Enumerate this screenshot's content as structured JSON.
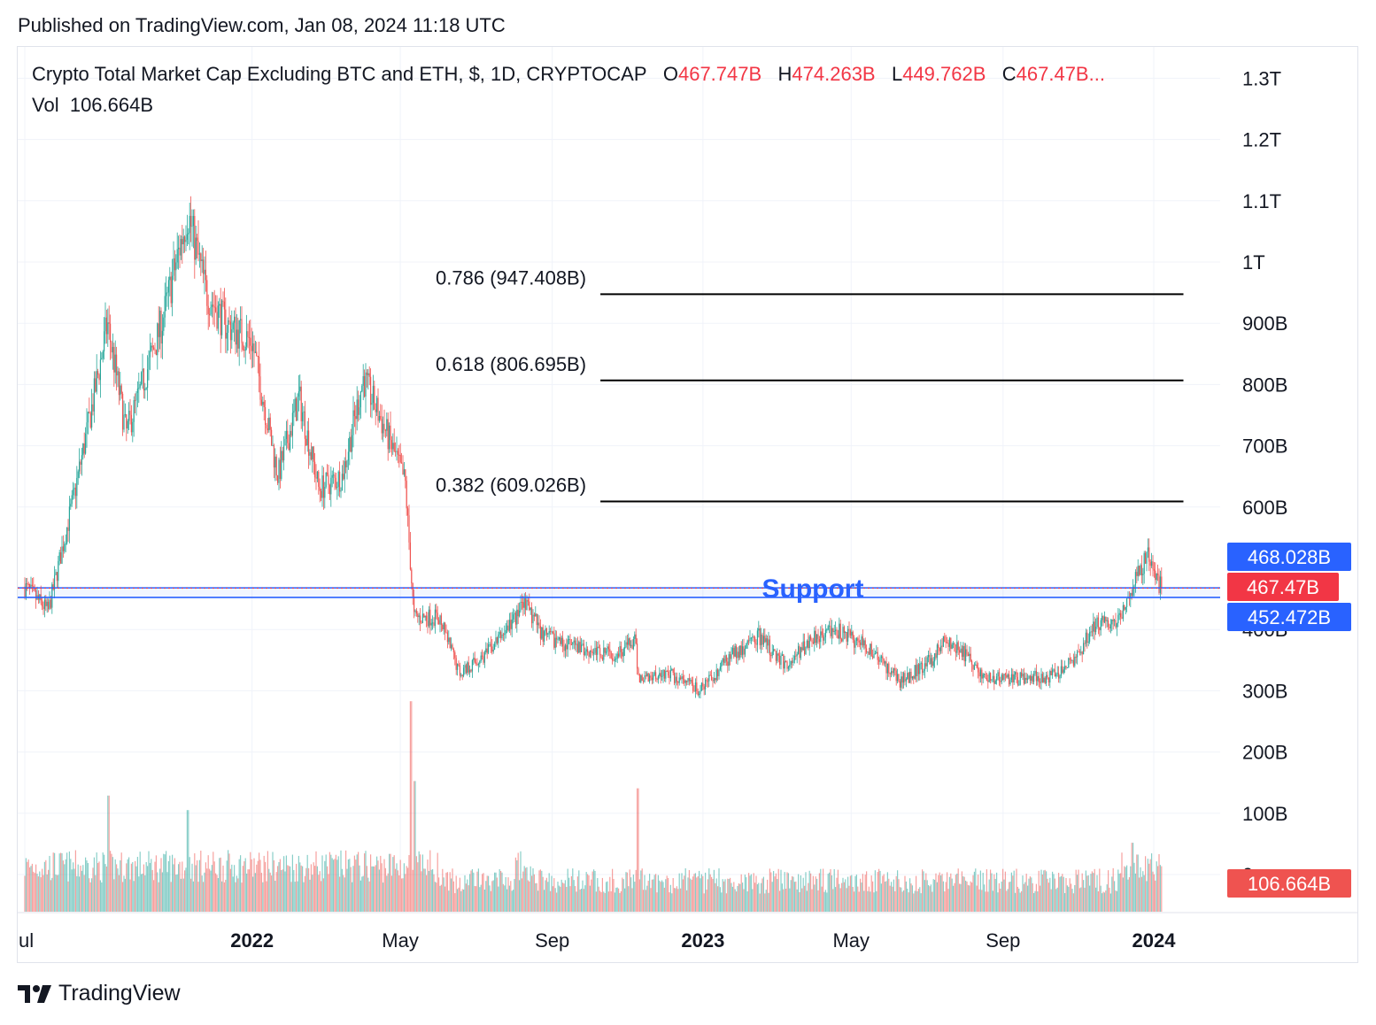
{
  "header": {
    "published": "Published on TradingView.com, Jan 08, 2024 11:18 UTC"
  },
  "legend": {
    "symbol": "Crypto Total Market Cap Excluding BTC and ETH, $, 1D, CRYPTOCAP",
    "o_label": "O",
    "o_value": "467.747B",
    "h_label": "H",
    "h_value": "474.263B",
    "l_label": "L",
    "l_value": "449.762B",
    "c_label": "C",
    "c_value": "467.47B...",
    "vol_label": "Vol",
    "vol_value": "106.664B"
  },
  "brand": {
    "name": "TradingView"
  },
  "colors": {
    "up": "#26a69a",
    "down": "#ef5350",
    "support": "#2962ff",
    "price_tag": "#f23645",
    "text": "#131722",
    "grid": "#f0f3fa"
  },
  "chart_data": {
    "type": "candlestick",
    "y_scale": "linear",
    "ylim": [
      0,
      1300
    ],
    "y_unit": "B",
    "y_ticks": [
      {
        "value": 1300,
        "label": "1.3T"
      },
      {
        "value": 1200,
        "label": "1.2T"
      },
      {
        "value": 1100,
        "label": "1.1T"
      },
      {
        "value": 1000,
        "label": "1T"
      },
      {
        "value": 900,
        "label": "900B"
      },
      {
        "value": 800,
        "label": "800B"
      },
      {
        "value": 700,
        "label": "700B"
      },
      {
        "value": 600,
        "label": "600B"
      },
      {
        "value": 400,
        "label": "400B"
      },
      {
        "value": 300,
        "label": "300B"
      },
      {
        "value": 200,
        "label": "200B"
      },
      {
        "value": 100,
        "label": "100B"
      },
      {
        "value": 0,
        "label": "0"
      }
    ],
    "x_ticks": [
      {
        "date": "2021-07-01",
        "label": "ul",
        "bold": false
      },
      {
        "date": "2022-01-01",
        "label": "2022",
        "bold": true
      },
      {
        "date": "2022-05-01",
        "label": "May",
        "bold": false
      },
      {
        "date": "2022-09-01",
        "label": "Sep",
        "bold": false
      },
      {
        "date": "2023-01-01",
        "label": "2023",
        "bold": true
      },
      {
        "date": "2023-05-01",
        "label": "May",
        "bold": false
      },
      {
        "date": "2023-09-01",
        "label": "Sep",
        "bold": false
      },
      {
        "date": "2024-01-01",
        "label": "2024",
        "bold": true
      }
    ],
    "price_path": [
      [
        "2021-07-01",
        470
      ],
      [
        "2021-07-20",
        430
      ],
      [
        "2021-08-10",
        620
      ],
      [
        "2021-08-25",
        770
      ],
      [
        "2021-09-06",
        900
      ],
      [
        "2021-09-21",
        720
      ],
      [
        "2021-10-01",
        780
      ],
      [
        "2021-10-20",
        900
      ],
      [
        "2021-11-10",
        1080
      ],
      [
        "2021-11-25",
        950
      ],
      [
        "2021-12-10",
        900
      ],
      [
        "2022-01-01",
        870
      ],
      [
        "2022-01-22",
        650
      ],
      [
        "2022-02-08",
        780
      ],
      [
        "2022-02-24",
        630
      ],
      [
        "2022-03-15",
        650
      ],
      [
        "2022-04-01",
        810
      ],
      [
        "2022-04-20",
        720
      ],
      [
        "2022-05-05",
        640
      ],
      [
        "2022-05-12",
        420
      ],
      [
        "2022-06-01",
        420
      ],
      [
        "2022-06-18",
        330
      ],
      [
        "2022-07-10",
        360
      ],
      [
        "2022-08-10",
        440
      ],
      [
        "2022-08-25",
        390
      ],
      [
        "2022-09-20",
        370
      ],
      [
        "2022-10-20",
        360
      ],
      [
        "2022-11-07",
        380
      ],
      [
        "2022-11-10",
        320
      ],
      [
        "2022-12-01",
        330
      ],
      [
        "2022-12-30",
        300
      ],
      [
        "2023-01-20",
        350
      ],
      [
        "2023-02-15",
        390
      ],
      [
        "2023-03-10",
        340
      ],
      [
        "2023-04-01",
        390
      ],
      [
        "2023-04-18",
        400
      ],
      [
        "2023-05-15",
        370
      ],
      [
        "2023-06-10",
        315
      ],
      [
        "2023-07-05",
        350
      ],
      [
        "2023-07-14",
        380
      ],
      [
        "2023-08-01",
        360
      ],
      [
        "2023-08-17",
        320
      ],
      [
        "2023-09-15",
        320
      ],
      [
        "2023-10-15",
        325
      ],
      [
        "2023-11-01",
        360
      ],
      [
        "2023-11-15",
        410
      ],
      [
        "2023-12-01",
        410
      ],
      [
        "2023-12-15",
        470
      ],
      [
        "2023-12-27",
        520
      ],
      [
        "2024-01-03",
        480
      ],
      [
        "2024-01-08",
        467.47
      ]
    ],
    "volume_peaks": [
      [
        "2021-09-07",
        160
      ],
      [
        "2021-11-10",
        140
      ],
      [
        "2022-05-10",
        290
      ],
      [
        "2022-05-13",
        180
      ],
      [
        "2022-11-09",
        170
      ],
      [
        "2023-12-15",
        95
      ]
    ],
    "fib_levels": [
      {
        "ratio": "0.786",
        "value": 947.408,
        "label": "0.786 (947.408B)"
      },
      {
        "ratio": "0.618",
        "value": 806.695,
        "label": "0.618 (806.695B)"
      },
      {
        "ratio": "0.382",
        "value": 609.026,
        "label": "0.382 (609.026B)"
      }
    ],
    "fib_start": "2022-10-10",
    "fib_end": "2024-01-25",
    "support": {
      "label": "Support",
      "upper": 468.028,
      "lower": 452.472
    },
    "price_tags": [
      {
        "value": 468.028,
        "label": "468.028B",
        "color": "#2962ff"
      },
      {
        "value": 467.47,
        "label": "467.47B",
        "color": "#f23645"
      },
      {
        "value": 452.472,
        "label": "452.472B",
        "color": "#2962ff"
      },
      {
        "value": 106.664,
        "label": "106.664B",
        "color": "#ef5350",
        "pane": "volume"
      }
    ]
  }
}
